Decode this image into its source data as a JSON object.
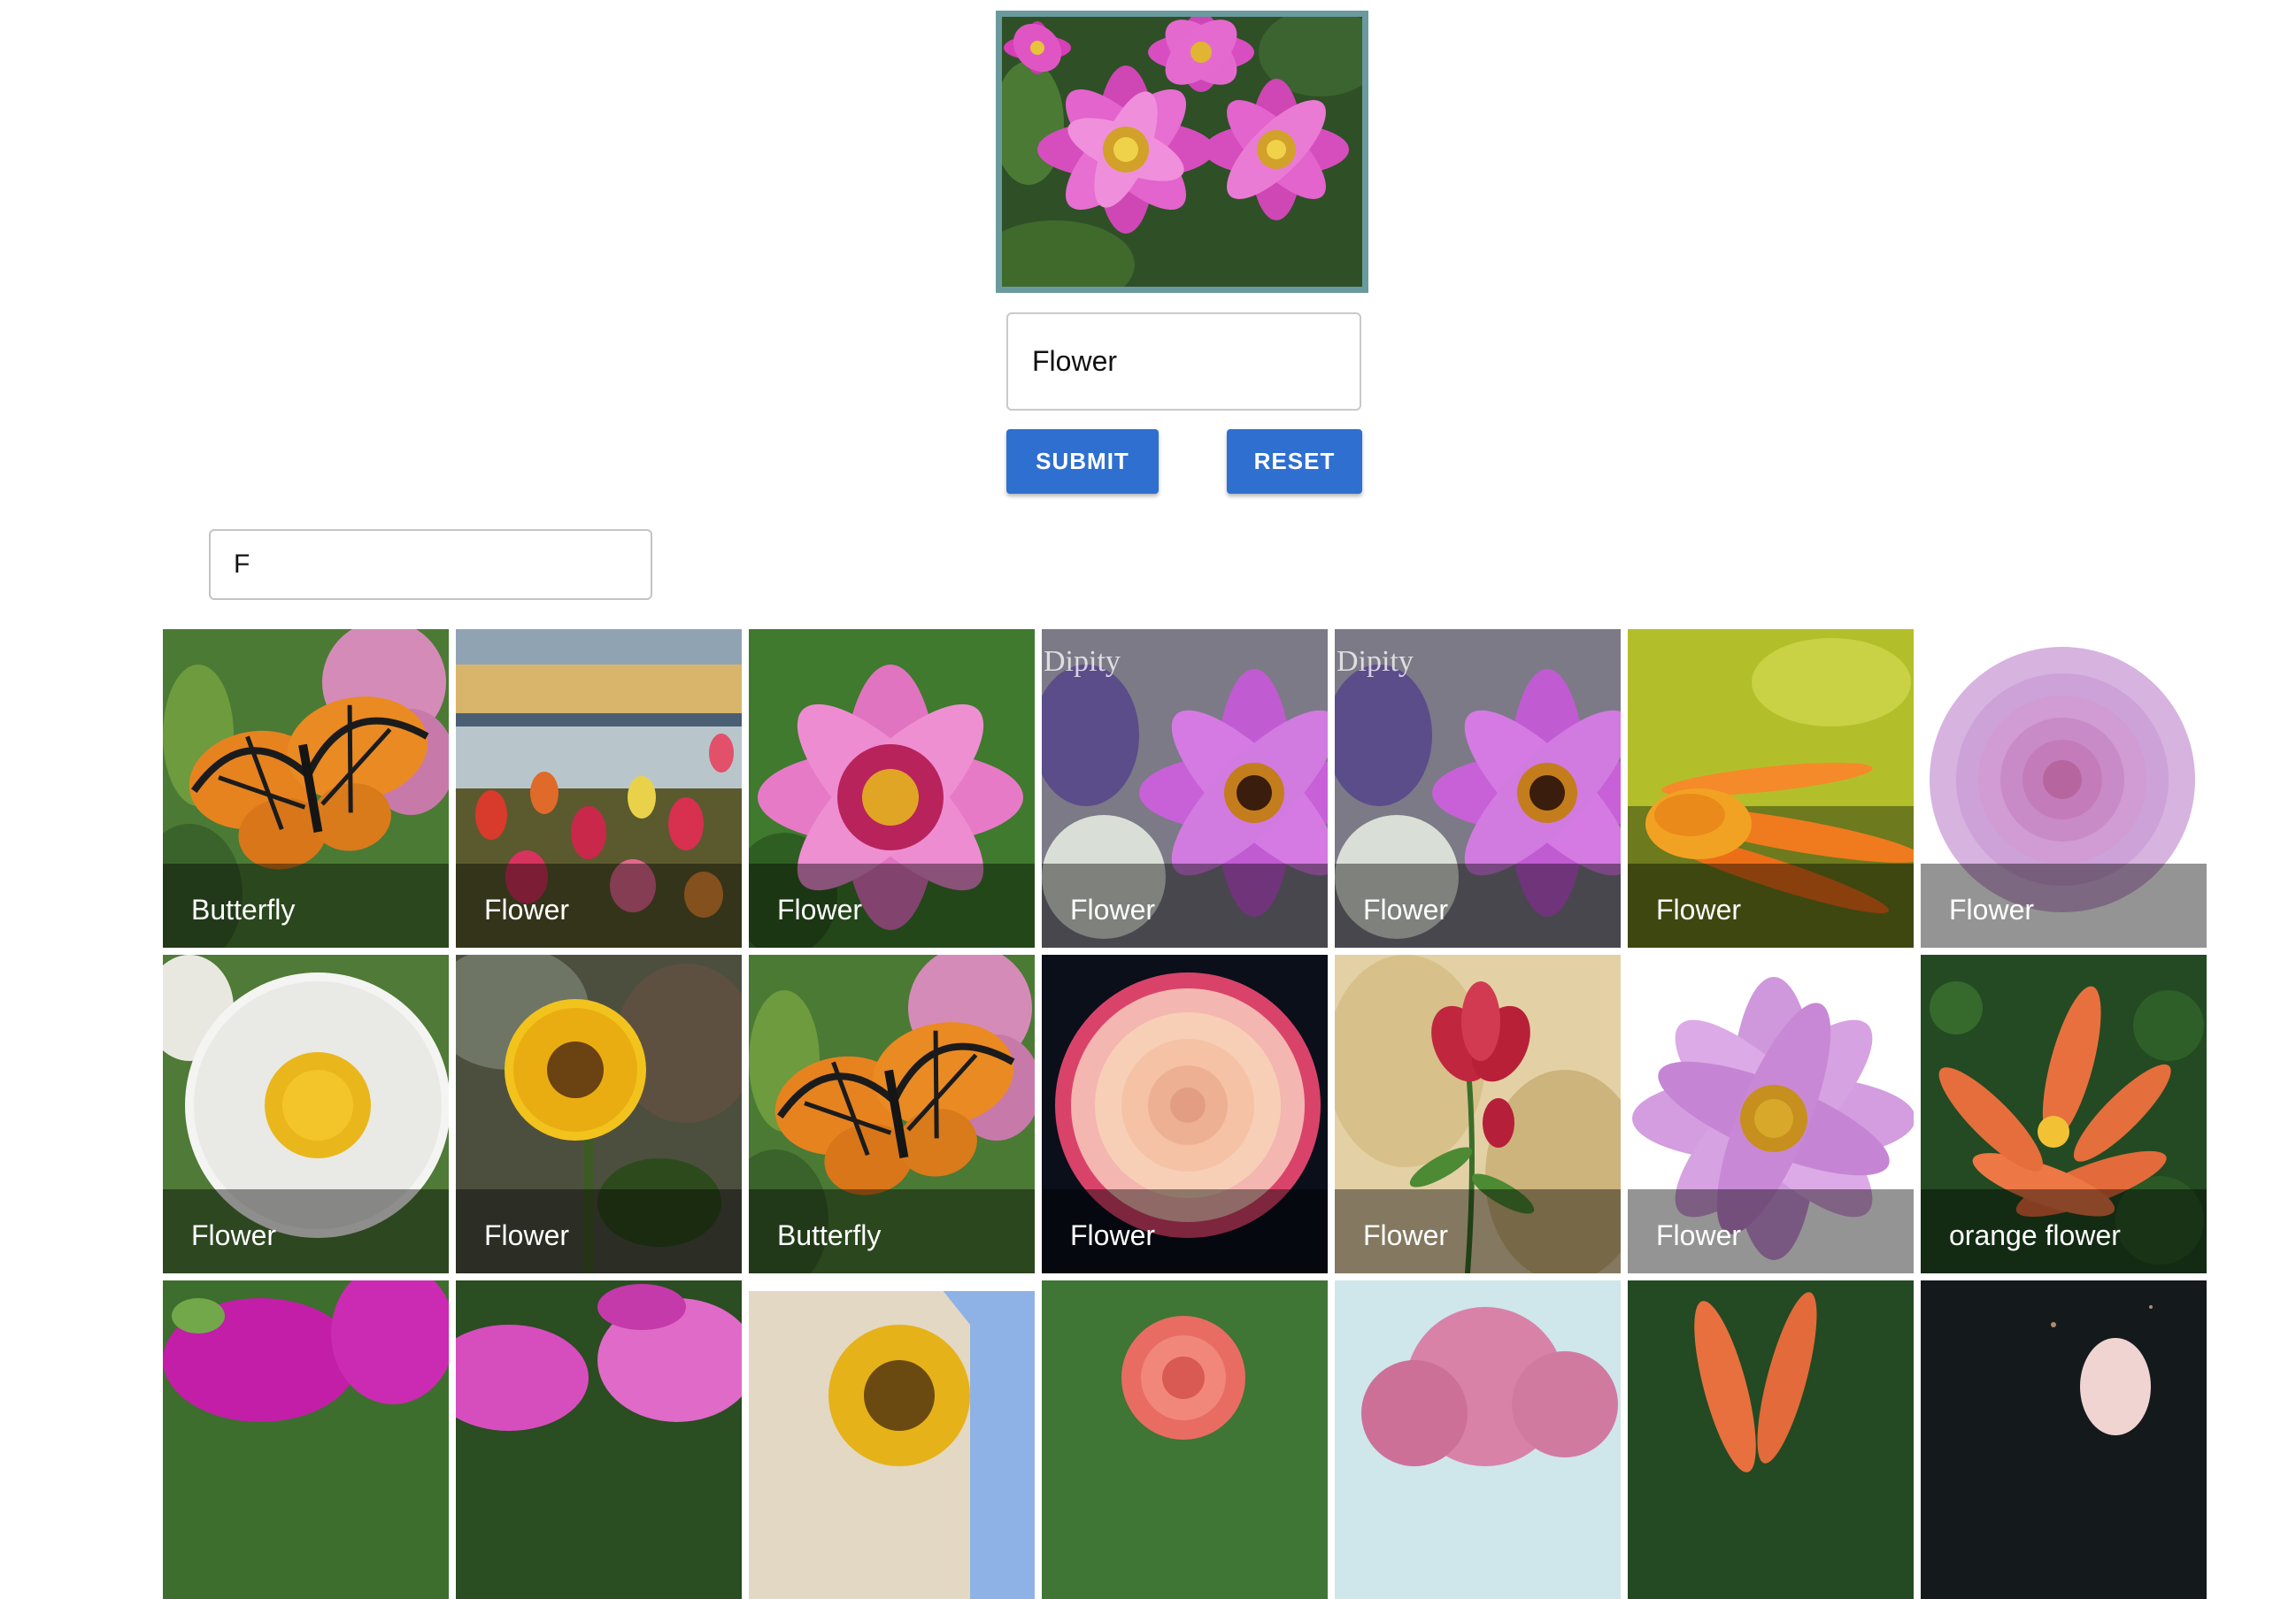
{
  "label_form": {
    "preview_icon": "pink-dahlia-image",
    "label_value": "Flower",
    "submit_label": "SUBMIT",
    "reset_label": "RESET"
  },
  "filter": {
    "value": "F"
  },
  "colors": {
    "button": "#2f6fd0",
    "frame": "#6a9a9e"
  },
  "gallery": {
    "tiles": [
      {
        "caption": "Butterfly",
        "image": "monarch-butterfly-on-pink-flowers"
      },
      {
        "caption": "Flower",
        "image": "tulips-by-lake-sunset"
      },
      {
        "caption": "Flower",
        "image": "pink-dahlia-red-center"
      },
      {
        "caption": "Flower",
        "image": "purple-dahlia",
        "watermark": "Dipity"
      },
      {
        "caption": "Flower",
        "image": "purple-dahlia",
        "watermark": "Dipity"
      },
      {
        "caption": "Flower",
        "image": "orange-daisy-yellow-background"
      },
      {
        "caption": "Flower",
        "image": "lavender-pompon-dahlia"
      },
      {
        "caption": "Flower",
        "image": "white-daisy"
      },
      {
        "caption": "Flower",
        "image": "sunflower"
      },
      {
        "caption": "Butterfly",
        "image": "monarch-butterfly-on-pink-flowers"
      },
      {
        "caption": "Flower",
        "image": "peach-pink-rose"
      },
      {
        "caption": "Flower",
        "image": "painted-red-lily"
      },
      {
        "caption": "Flower",
        "image": "lilac-dahlia"
      },
      {
        "caption": "orange flower",
        "image": "orange-lily"
      },
      {
        "image": "magenta-petunia"
      },
      {
        "image": "pink-flowers"
      },
      {
        "image": "sunflower-blue-sky"
      },
      {
        "image": "coral-rose"
      },
      {
        "image": "pink-roses"
      },
      {
        "image": "orange-lily"
      },
      {
        "image": "pale-pink-flower-dark"
      }
    ]
  }
}
